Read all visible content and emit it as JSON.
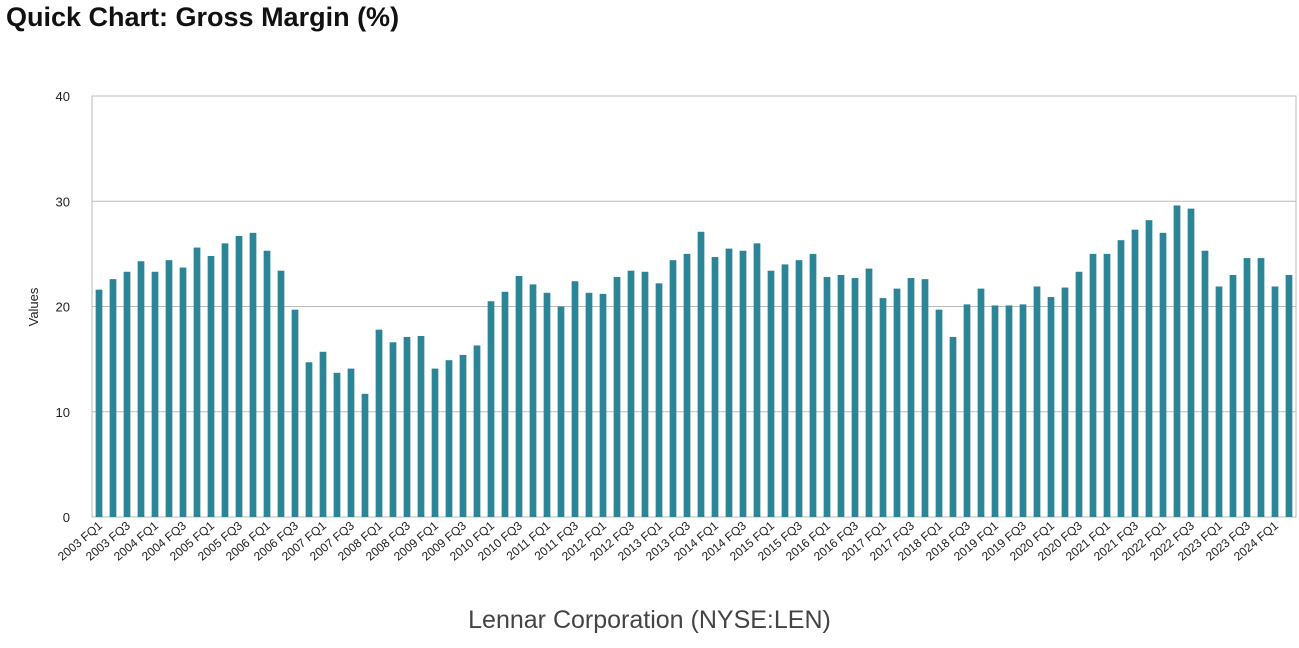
{
  "title": "Quick Chart: Gross Margin (%)",
  "company": "Lennar Corporation (NYSE:LEN)",
  "colors": {
    "bar": "#2b8596",
    "grid": "#bbbbbb",
    "axis": "#bbbbbb"
  },
  "chart_data": {
    "type": "bar",
    "title": "Quick Chart: Gross Margin (%)",
    "xlabel": "Lennar Corporation (NYSE:LEN)",
    "ylabel": "Values",
    "ylim": [
      0,
      40
    ],
    "yticks": [
      0,
      10,
      20,
      30,
      40
    ],
    "grid": true,
    "legend": "none",
    "tick_labels": [
      "2003 FQ1",
      "2003 FQ3",
      "2004 FQ1",
      "2004 FQ3",
      "2005 FQ1",
      "2005 FQ3",
      "2006 FQ1",
      "2006 FQ3",
      "2007 FQ1",
      "2007 FQ3",
      "2008 FQ1",
      "2008 FQ3",
      "2009 FQ1",
      "2009 FQ3",
      "2010 FQ1",
      "2010 FQ3",
      "2011 FQ1",
      "2011 FQ3",
      "2012 FQ1",
      "2012 FQ3",
      "2013 FQ1",
      "2013 FQ3",
      "2014 FQ1",
      "2014 FQ3",
      "2015 FQ1",
      "2015 FQ3",
      "2016 FQ1",
      "2016 FQ3",
      "2017 FQ1",
      "2017 FQ3",
      "2018 FQ1",
      "2018 FQ3",
      "2019 FQ1",
      "2019 FQ3",
      "2020 FQ1",
      "2020 FQ3",
      "2021 FQ1",
      "2021 FQ3",
      "2022 FQ1",
      "2022 FQ3",
      "2023 FQ1",
      "2023 FQ3",
      "2024 FQ1"
    ],
    "categories": [
      "2003 FQ1",
      "2003 FQ2",
      "2003 FQ3",
      "2003 FQ4",
      "2004 FQ1",
      "2004 FQ2",
      "2004 FQ3",
      "2004 FQ4",
      "2005 FQ1",
      "2005 FQ2",
      "2005 FQ3",
      "2005 FQ4",
      "2006 FQ1",
      "2006 FQ2",
      "2006 FQ3",
      "2006 FQ4",
      "2007 FQ1",
      "2007 FQ2",
      "2007 FQ3",
      "2007 FQ4",
      "2008 FQ1",
      "2008 FQ2",
      "2008 FQ3",
      "2008 FQ4",
      "2009 FQ1",
      "2009 FQ2",
      "2009 FQ3",
      "2009 FQ4",
      "2010 FQ1",
      "2010 FQ2",
      "2010 FQ3",
      "2010 FQ4",
      "2011 FQ1",
      "2011 FQ2",
      "2011 FQ3",
      "2011 FQ4",
      "2012 FQ1",
      "2012 FQ2",
      "2012 FQ3",
      "2012 FQ4",
      "2013 FQ1",
      "2013 FQ2",
      "2013 FQ3",
      "2013 FQ4",
      "2014 FQ1",
      "2014 FQ2",
      "2014 FQ3",
      "2014 FQ4",
      "2015 FQ1",
      "2015 FQ2",
      "2015 FQ3",
      "2015 FQ4",
      "2016 FQ1",
      "2016 FQ2",
      "2016 FQ3",
      "2016 FQ4",
      "2017 FQ1",
      "2017 FQ2",
      "2017 FQ3",
      "2017 FQ4",
      "2018 FQ1",
      "2018 FQ2",
      "2018 FQ3",
      "2018 FQ4",
      "2019 FQ1",
      "2019 FQ2",
      "2019 FQ3",
      "2019 FQ4",
      "2020 FQ1",
      "2020 FQ2",
      "2020 FQ3",
      "2020 FQ4",
      "2021 FQ1",
      "2021 FQ2",
      "2021 FQ3",
      "2021 FQ4",
      "2022 FQ1",
      "2022 FQ2",
      "2022 FQ3",
      "2022 FQ4",
      "2023 FQ1",
      "2023 FQ2",
      "2023 FQ3",
      "2023 FQ4",
      "2024 FQ1",
      "2024 FQ2"
    ],
    "values": [
      21.6,
      22.6,
      23.3,
      24.3,
      23.3,
      24.4,
      23.7,
      25.6,
      24.8,
      26.0,
      26.7,
      27.0,
      25.3,
      23.4,
      19.7,
      14.7,
      15.7,
      13.7,
      14.1,
      11.7,
      17.8,
      16.6,
      17.1,
      17.2,
      14.1,
      14.9,
      15.4,
      16.3,
      20.5,
      21.4,
      22.9,
      22.1,
      21.3,
      20.0,
      22.4,
      21.3,
      21.2,
      22.8,
      23.4,
      23.3,
      22.2,
      24.4,
      25.0,
      27.1,
      24.7,
      25.5,
      25.3,
      26.0,
      23.4,
      24.0,
      24.4,
      25.0,
      22.8,
      23.0,
      22.7,
      23.6,
      20.8,
      21.7,
      22.7,
      22.6,
      19.7,
      17.1,
      20.2,
      21.7,
      20.1,
      20.1,
      20.2,
      21.9,
      20.9,
      21.8,
      23.3,
      25.0,
      25.0,
      26.3,
      27.3,
      28.2,
      27.0,
      29.6,
      29.3,
      25.3,
      21.9,
      23.0,
      24.6,
      24.6,
      21.9,
      23.0
    ]
  }
}
